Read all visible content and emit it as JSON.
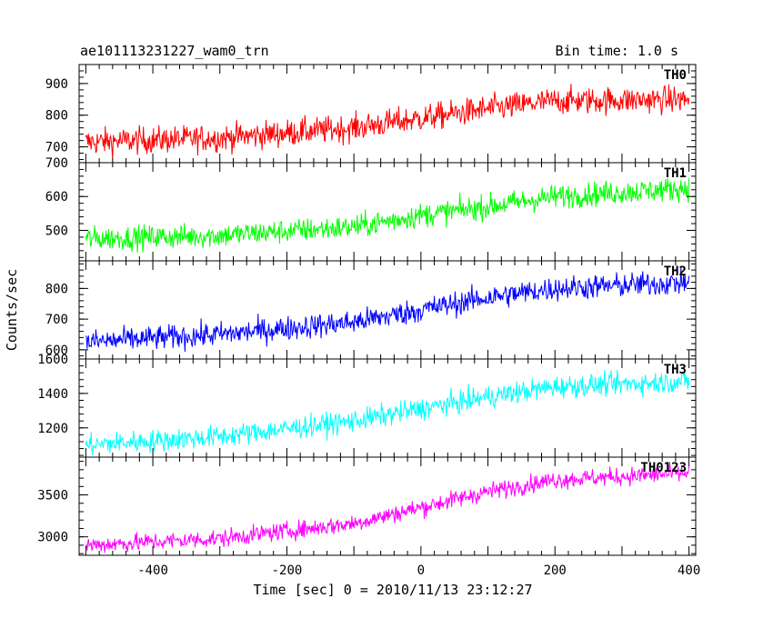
{
  "chart_data": {
    "type": "line",
    "title": "ae101113231227_wam0_trn",
    "subtitle": "Bin time: 1.0 s",
    "xlabel": "Time [sec] 0 = 2010/11/13 23:12:27",
    "ylabel": "Counts/sec",
    "xlim": [
      -510,
      410
    ],
    "x_ticks": [
      -400,
      -200,
      0,
      200,
      400
    ],
    "bin_time_sec": 1.0,
    "panels": [
      {
        "name": "TH0",
        "color": "#ff0000",
        "ylim": [
          650,
          960
        ],
        "y_ticks": [
          700,
          800,
          900
        ],
        "trend": [
          [
            -500,
            715
          ],
          [
            -300,
            728
          ],
          [
            -100,
            760
          ],
          [
            0,
            790
          ],
          [
            100,
            820
          ],
          [
            200,
            845
          ],
          [
            400,
            850
          ]
        ],
        "noise": 30
      },
      {
        "name": "TH1",
        "color": "#00ff00",
        "ylim": [
          410,
          700
        ],
        "y_ticks": [
          500,
          600,
          700
        ],
        "trend": [
          [
            -500,
            475
          ],
          [
            -300,
            485
          ],
          [
            -100,
            510
          ],
          [
            0,
            545
          ],
          [
            100,
            570
          ],
          [
            200,
            600
          ],
          [
            400,
            625
          ]
        ],
        "noise": 25
      },
      {
        "name": "TH2",
        "color": "#0000ff",
        "ylim": [
          570,
          890
        ],
        "y_ticks": [
          600,
          700,
          800
        ],
        "trend": [
          [
            -500,
            625
          ],
          [
            -300,
            650
          ],
          [
            -100,
            690
          ],
          [
            0,
            730
          ],
          [
            100,
            770
          ],
          [
            200,
            800
          ],
          [
            400,
            820
          ]
        ],
        "noise": 28
      },
      {
        "name": "TH3",
        "color": "#00ffff",
        "ylim": [
          1030,
          1600
        ],
        "y_ticks": [
          1200,
          1400,
          1600
        ],
        "trend": [
          [
            -500,
            1100
          ],
          [
            -300,
            1150
          ],
          [
            -100,
            1240
          ],
          [
            0,
            1310
          ],
          [
            100,
            1380
          ],
          [
            200,
            1440
          ],
          [
            400,
            1470
          ]
        ],
        "noise": 45
      },
      {
        "name": "TH0123",
        "color": "#ff00ff",
        "ylim": [
          2780,
          3950
        ],
        "y_ticks": [
          3000,
          3500
        ],
        "trend": [
          [
            -500,
            2900
          ],
          [
            -300,
            2980
          ],
          [
            -100,
            3160
          ],
          [
            0,
            3350
          ],
          [
            100,
            3540
          ],
          [
            200,
            3680
          ],
          [
            400,
            3760
          ]
        ],
        "noise": 75
      }
    ]
  }
}
